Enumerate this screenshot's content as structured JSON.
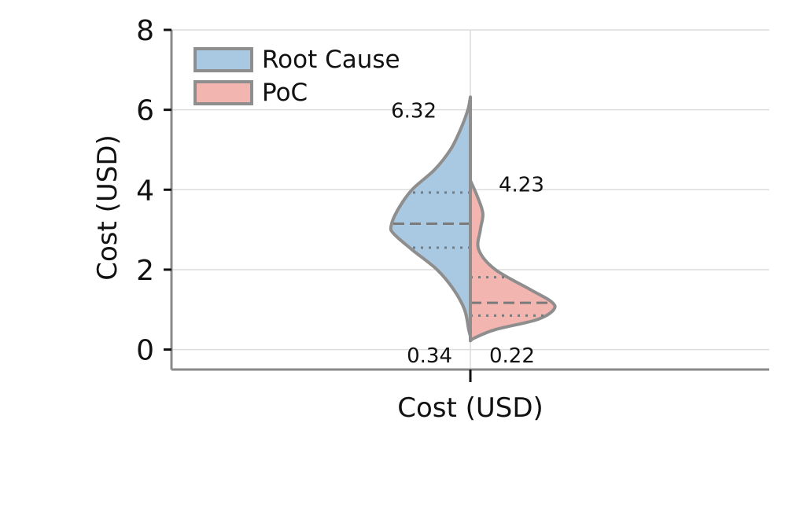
{
  "chart_data": {
    "type": "violin",
    "split": true,
    "title": "",
    "xlabel": "Cost (USD)",
    "ylabel": "Cost (USD)",
    "categories": [
      "Cost (USD)"
    ],
    "ylim": [
      -0.5,
      8
    ],
    "yticks": [
      0,
      2,
      4,
      6,
      8
    ],
    "grid": true,
    "legend": {
      "position": "top-left"
    },
    "series": [
      {
        "name": "Root Cause",
        "side": "left",
        "color": "#a9c8e1",
        "min": 0.34,
        "max": 6.32,
        "q1": 2.55,
        "median": 3.15,
        "q3": 3.93,
        "density": [
          [
            0.34,
            0.0
          ],
          [
            0.5,
            0.02
          ],
          [
            1.0,
            0.07
          ],
          [
            1.5,
            0.2
          ],
          [
            2.0,
            0.4
          ],
          [
            2.5,
            0.7
          ],
          [
            2.9,
            0.92
          ],
          [
            3.1,
            0.95
          ],
          [
            3.5,
            0.87
          ],
          [
            4.0,
            0.7
          ],
          [
            4.5,
            0.43
          ],
          [
            5.0,
            0.24
          ],
          [
            5.5,
            0.12
          ],
          [
            6.0,
            0.03
          ],
          [
            6.32,
            0.0
          ]
        ]
      },
      {
        "name": "PoC",
        "side": "right",
        "color": "#f2b5b0",
        "min": 0.22,
        "max": 4.23,
        "q1": 0.85,
        "median": 1.17,
        "q3": 1.81,
        "density": [
          [
            0.22,
            0.0
          ],
          [
            0.3,
            0.06
          ],
          [
            0.5,
            0.3
          ],
          [
            0.75,
            0.8
          ],
          [
            1.0,
            1.0
          ],
          [
            1.2,
            0.97
          ],
          [
            1.5,
            0.72
          ],
          [
            2.0,
            0.3
          ],
          [
            2.5,
            0.1
          ],
          [
            3.0,
            0.12
          ],
          [
            3.4,
            0.15
          ],
          [
            3.8,
            0.09
          ],
          [
            4.23,
            0.0
          ]
        ]
      }
    ],
    "annotations": [
      "6.32",
      "4.23",
      "0.34",
      "0.22"
    ]
  }
}
